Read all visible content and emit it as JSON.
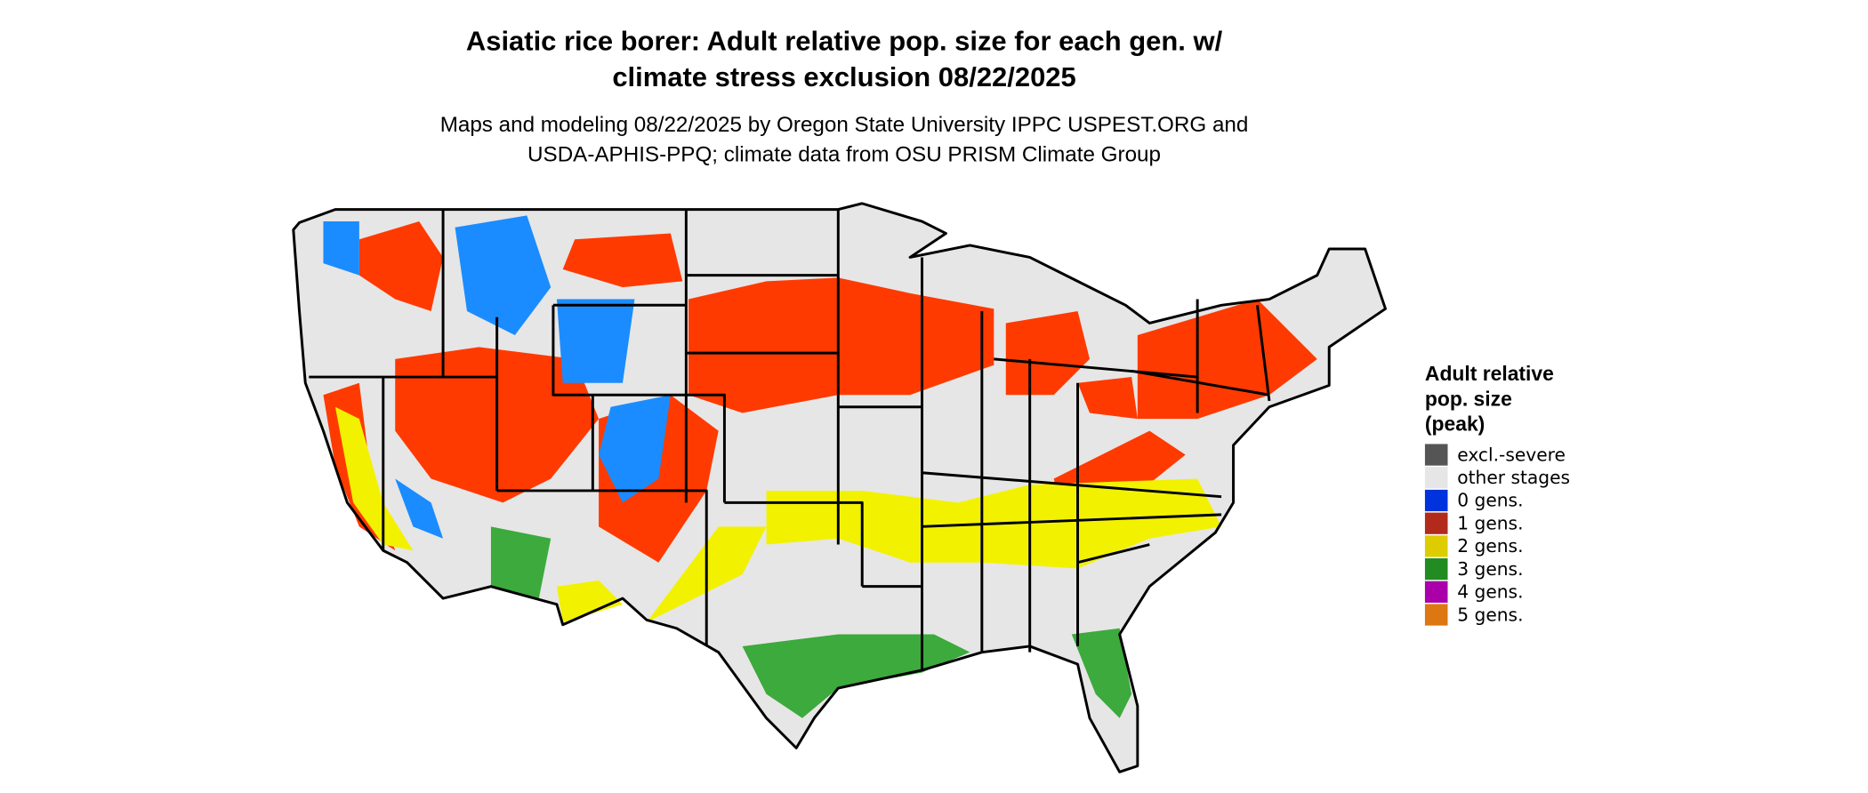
{
  "title": [
    "Asiatic rice borer: Adult relative pop. size for each gen. w/",
    "climate stress exclusion 08/22/2025"
  ],
  "subtitle": [
    "Maps and modeling 08/22/2025 by Oregon State University IPPC USPEST.ORG and",
    "USDA-APHIS-PPQ; climate data from OSU PRISM Climate Group"
  ],
  "legend": {
    "title": [
      "Adult relative",
      "pop. size",
      "(peak)"
    ],
    "items": [
      {
        "label": "excl.-severe",
        "color": "#555555"
      },
      {
        "label": "other stages",
        "color": "#e6e6e6"
      },
      {
        "label": "0 gens.",
        "color": "#0033dd"
      },
      {
        "label": "1 gens.",
        "color": "#b22a1a"
      },
      {
        "label": "2 gens.",
        "color": "#ddcc00"
      },
      {
        "label": "3 gens.",
        "color": "#228b22"
      },
      {
        "label": "4 gens.",
        "color": "#aa00aa"
      },
      {
        "label": "5 gens.",
        "color": "#dd7711"
      }
    ]
  }
}
